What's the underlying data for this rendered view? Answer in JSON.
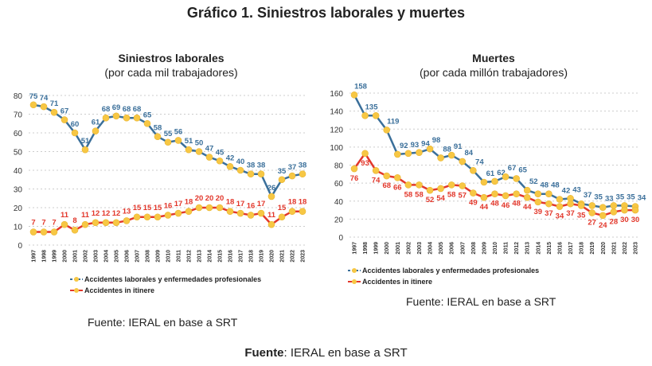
{
  "title": "Gráfico 1. Siniestros laborales y muertes",
  "footer": {
    "label": "Fuente",
    "text": ": IERAL en base a SRT"
  },
  "colors": {
    "laborales": "#3a6f9a",
    "itinere": "#e2372b",
    "marker": "#f7c744"
  },
  "chart_data": [
    {
      "type": "line",
      "title": "Siniestros laborales",
      "subtitle": "(por cada mil trabajadores)",
      "source": "Fuente: IERAL en base a SRT",
      "ylim": [
        0,
        80
      ],
      "yticks": [
        0,
        10,
        20,
        30,
        40,
        50,
        60,
        70,
        80
      ],
      "grid": true,
      "legend_placement": "bottom",
      "x": [
        "1997",
        "1998",
        "1999",
        "2000",
        "2001",
        "2002",
        "2003",
        "2004",
        "2005",
        "2006",
        "2007",
        "2008",
        "2009",
        "2010",
        "2011",
        "2012",
        "2013",
        "2014",
        "2015",
        "2016",
        "2017",
        "2018",
        "2019",
        "2020",
        "2021",
        "2022",
        "2023"
      ],
      "series": [
        {
          "name": "Accidentes laborales y enfermedades profesionales",
          "values": [
            75,
            74,
            71,
            67,
            60,
            51,
            61,
            68,
            69,
            68,
            68,
            65,
            58,
            55,
            56,
            51,
            50,
            47,
            45,
            42,
            40,
            38,
            38,
            26,
            35,
            37,
            38
          ]
        },
        {
          "name": "Accidentes in itinere",
          "values": [
            7,
            7,
            7,
            11,
            8,
            11,
            12,
            12,
            12,
            13,
            15,
            15,
            15,
            16,
            17,
            18,
            20,
            20,
            20,
            18,
            17,
            16,
            17,
            11,
            15,
            18,
            18
          ]
        }
      ]
    },
    {
      "type": "line",
      "title": "Muertes",
      "subtitle": "(por cada millón trabajadores)",
      "source": "Fuente: IERAL en base a SRT",
      "ylim": [
        0,
        160
      ],
      "yticks": [
        0,
        20,
        40,
        60,
        80,
        100,
        120,
        140,
        160
      ],
      "grid": true,
      "legend_placement": "bottom",
      "x": [
        "1997",
        "1998",
        "1999",
        "2000",
        "2001",
        "2002",
        "2003",
        "2004",
        "2005",
        "2006",
        "2007",
        "2008",
        "2009",
        "2010",
        "2011",
        "2012",
        "2013",
        "2014",
        "2015",
        "2016",
        "2017",
        "2018",
        "2019",
        "2020",
        "2021",
        "2022",
        "2023"
      ],
      "series": [
        {
          "name": "Accidentes laborales y enfermedades profesionales",
          "values": [
            158,
            135,
            135,
            119,
            92,
            93,
            94,
            98,
            88,
            91,
            84,
            74,
            61,
            62,
            67,
            65,
            52,
            48,
            48,
            42,
            43,
            37,
            35,
            33,
            35,
            35,
            34
          ]
        },
        {
          "name": "Accidentes in itinere",
          "values": [
            76,
            93,
            74,
            68,
            66,
            58,
            58,
            52,
            54,
            58,
            57,
            49,
            44,
            48,
            46,
            48,
            44,
            39,
            37,
            34,
            37,
            35,
            27,
            24,
            28,
            30,
            30
          ]
        }
      ]
    }
  ]
}
